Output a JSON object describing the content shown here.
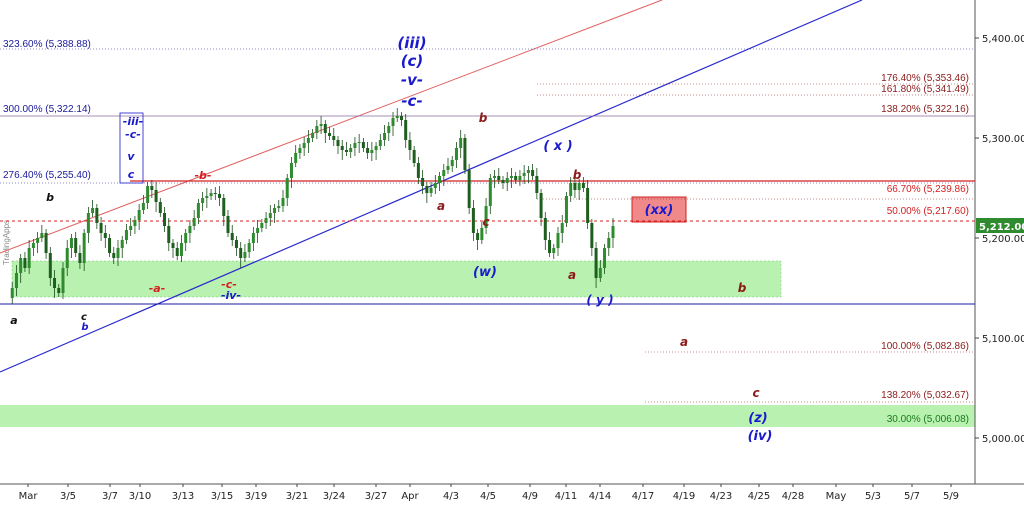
{
  "watermark": "TradingApps",
  "chart_data": {
    "type": "candlestick",
    "x_labels": [
      "Mar",
      "3/5",
      "3/7",
      "3/10",
      "3/13",
      "3/15",
      "3/19",
      "3/21",
      "3/24",
      "3/27",
      "Apr",
      "4/3",
      "4/5",
      "4/9",
      "4/11",
      "4/14",
      "4/17",
      "4/19",
      "4/23",
      "4/25",
      "4/28",
      "May",
      "5/3",
      "5/7",
      "5/9"
    ],
    "y_ticks": [
      "5,400.00",
      "5,300.00",
      "5,200.00",
      "5,100.00",
      "5,000.00"
    ],
    "y_tick_values": [
      5400,
      5300,
      5200,
      5100,
      5000
    ],
    "last_price_label": "5,212.00",
    "last_price": 5212.0,
    "price_path": [
      [
        0,
        5140
      ],
      [
        2,
        5150
      ],
      [
        4,
        5165
      ],
      [
        6,
        5180
      ],
      [
        8,
        5170
      ],
      [
        10,
        5190
      ],
      [
        12,
        5195
      ],
      [
        14,
        5200
      ],
      [
        16,
        5205
      ],
      [
        18,
        5185
      ],
      [
        20,
        5160
      ],
      [
        22,
        5150
      ],
      [
        24,
        5145
      ],
      [
        26,
        5170
      ],
      [
        28,
        5190
      ],
      [
        30,
        5200
      ],
      [
        32,
        5185
      ],
      [
        34,
        5175
      ],
      [
        36,
        5205
      ],
      [
        38,
        5225
      ],
      [
        40,
        5230
      ],
      [
        42,
        5215
      ],
      [
        44,
        5205
      ],
      [
        46,
        5200
      ],
      [
        48,
        5185
      ],
      [
        50,
        5180
      ],
      [
        52,
        5190
      ],
      [
        54,
        5198
      ],
      [
        56,
        5208
      ],
      [
        58,
        5212
      ],
      [
        60,
        5218
      ],
      [
        62,
        5228
      ],
      [
        64,
        5235
      ],
      [
        66,
        5252
      ],
      [
        68,
        5248
      ],
      [
        70,
        5236
      ],
      [
        72,
        5225
      ],
      [
        74,
        5212
      ],
      [
        76,
        5195
      ],
      [
        78,
        5190
      ],
      [
        80,
        5182
      ],
      [
        82,
        5195
      ],
      [
        84,
        5205
      ],
      [
        86,
        5212
      ],
      [
        88,
        5220
      ],
      [
        90,
        5235
      ],
      [
        92,
        5240
      ],
      [
        94,
        5242
      ],
      [
        96,
        5245
      ],
      [
        98,
        5244
      ],
      [
        100,
        5240
      ],
      [
        102,
        5222
      ],
      [
        104,
        5205
      ],
      [
        106,
        5198
      ],
      [
        108,
        5190
      ],
      [
        110,
        5180
      ],
      [
        112,
        5186
      ],
      [
        114,
        5195
      ],
      [
        116,
        5205
      ],
      [
        118,
        5210
      ],
      [
        120,
        5215
      ],
      [
        122,
        5220
      ],
      [
        124,
        5225
      ],
      [
        126,
        5230
      ],
      [
        128,
        5232
      ],
      [
        130,
        5240
      ],
      [
        132,
        5260
      ],
      [
        134,
        5275
      ],
      [
        136,
        5285
      ],
      [
        138,
        5290
      ],
      [
        140,
        5295
      ],
      [
        142,
        5300
      ],
      [
        144,
        5305
      ],
      [
        146,
        5312
      ],
      [
        148,
        5314
      ],
      [
        150,
        5305
      ],
      [
        152,
        5302
      ],
      [
        154,
        5298
      ],
      [
        156,
        5292
      ],
      [
        158,
        5288
      ],
      [
        160,
        5286
      ],
      [
        162,
        5290
      ],
      [
        164,
        5295
      ],
      [
        166,
        5296
      ],
      [
        168,
        5290
      ],
      [
        170,
        5285
      ],
      [
        172,
        5288
      ],
      [
        174,
        5292
      ],
      [
        176,
        5298
      ],
      [
        178,
        5305
      ],
      [
        180,
        5312
      ],
      [
        182,
        5320
      ],
      [
        184,
        5322
      ],
      [
        186,
        5318
      ],
      [
        188,
        5298
      ],
      [
        190,
        5288
      ],
      [
        192,
        5275
      ],
      [
        194,
        5260
      ],
      [
        196,
        5252
      ],
      [
        198,
        5245
      ],
      [
        200,
        5250
      ],
      [
        202,
        5255
      ],
      [
        204,
        5262
      ],
      [
        206,
        5268
      ],
      [
        208,
        5272
      ],
      [
        210,
        5278
      ],
      [
        212,
        5290
      ],
      [
        214,
        5300
      ],
      [
        216,
        5268
      ],
      [
        218,
        5230
      ],
      [
        220,
        5205
      ],
      [
        222,
        5198
      ],
      [
        224,
        5210
      ],
      [
        226,
        5232
      ],
      [
        228,
        5260
      ],
      [
        230,
        5262
      ],
      [
        232,
        5258
      ],
      [
        234,
        5255
      ],
      [
        236,
        5260
      ],
      [
        238,
        5262
      ],
      [
        240,
        5258
      ],
      [
        242,
        5262
      ],
      [
        244,
        5265
      ],
      [
        246,
        5268
      ],
      [
        248,
        5262
      ],
      [
        250,
        5245
      ],
      [
        252,
        5220
      ],
      [
        254,
        5198
      ],
      [
        256,
        5185
      ],
      [
        258,
        5190
      ],
      [
        260,
        5205
      ],
      [
        262,
        5215
      ],
      [
        264,
        5242
      ],
      [
        266,
        5255
      ],
      [
        268,
        5248
      ],
      [
        270,
        5255
      ],
      [
        272,
        5250
      ],
      [
        274,
        5215
      ],
      [
        276,
        5190
      ],
      [
        278,
        5160
      ],
      [
        280,
        5170
      ],
      [
        282,
        5190
      ],
      [
        284,
        5200
      ],
      [
        286,
        5212
      ]
    ],
    "fib_levels": [
      {
        "label": "323.60% (5,388.88)",
        "value": 5388.88,
        "color": "#1a1a9c"
      },
      {
        "label": "300.00% (5,322.14)",
        "value": 5322.14,
        "color": "#1a1a9c"
      },
      {
        "label": "276.40% (5,255.40)",
        "value": 5255.4,
        "color": "#1a1a9c"
      },
      {
        "label": "176.40% (5,353.46)",
        "value": 5353.46,
        "color": "#8b1a1a"
      },
      {
        "label": "161.80% (5,341.49)",
        "value": 5341.49,
        "color": "#8b1a1a"
      },
      {
        "label": "138.20% (5,322.16)",
        "value": 5322.16,
        "color": "#8b1a1a"
      },
      {
        "label": "66.70% (5,239.86)",
        "value": 5239.86,
        "color": "#d42020"
      },
      {
        "label": "50.00% (5,217.60)",
        "value": 5217.6,
        "color": "#d42020"
      },
      {
        "label": "100.00% (5,082.86)",
        "value": 5082.86,
        "color": "#8b1a1a"
      },
      {
        "label": "138.20% (5,032.67)",
        "value": 5032.67,
        "color": "#8b1a1a"
      },
      {
        "label": "30.00% (5,006.08)",
        "value": 5006.08,
        "color": "#1a7a1a"
      }
    ],
    "wave_labels": [
      {
        "text": "a",
        "color": "#111111"
      },
      {
        "text": "b",
        "color": "#111111"
      },
      {
        "text": "c",
        "color": "#111111"
      },
      {
        "text": "b",
        "color": "#1a1acc"
      },
      {
        "text": "-iii-",
        "color": "#1a1acc"
      },
      {
        "text": "-c-",
        "color": "#1a1acc"
      },
      {
        "text": "v",
        "color": "#1a1acc"
      },
      {
        "text": "c",
        "color": "#1a1acc"
      },
      {
        "text": "-a-",
        "color": "#d42020"
      },
      {
        "text": "-b-",
        "color": "#d42020"
      },
      {
        "text": "-c-",
        "color": "#d42020"
      },
      {
        "text": "-iv-",
        "color": "#1a1acc"
      },
      {
        "text": "(iii)",
        "color": "#1a1acc"
      },
      {
        "text": "(c)",
        "color": "#1a1acc"
      },
      {
        "text": "-v-",
        "color": "#1a1acc"
      },
      {
        "text": "-c-",
        "color": "#1a1acc"
      },
      {
        "text": "a",
        "color": "#8b1a1a"
      },
      {
        "text": "b",
        "color": "#8b1a1a"
      },
      {
        "text": "c",
        "color": "#8b1a1a"
      },
      {
        "text": "(w)",
        "color": "#1a1acc"
      },
      {
        "text": "( x )",
        "color": "#1a1acc"
      },
      {
        "text": "b",
        "color": "#8b1a1a"
      },
      {
        "text": "a",
        "color": "#8b1a1a"
      },
      {
        "text": "( y )",
        "color": "#1a1acc"
      },
      {
        "text": "(xx)",
        "color": "#1a1acc"
      },
      {
        "text": "b",
        "color": "#8b1a1a"
      },
      {
        "text": "a",
        "color": "#8b1a1a"
      },
      {
        "text": "c",
        "color": "#8b1a1a"
      },
      {
        "text": "(z)",
        "color": "#1a1acc"
      },
      {
        "text": "(iv)",
        "color": "#1a1acc"
      }
    ],
    "colors": {
      "candle": "#2e8b2e",
      "grid_dotted": "#8b1a1a",
      "support_line": "#1a1a9c",
      "zone_fill": "#b9f2b0",
      "xx_box": "#f08a8a",
      "channel_red": "#e06060",
      "channel_blue": "#2a2ad0"
    }
  }
}
